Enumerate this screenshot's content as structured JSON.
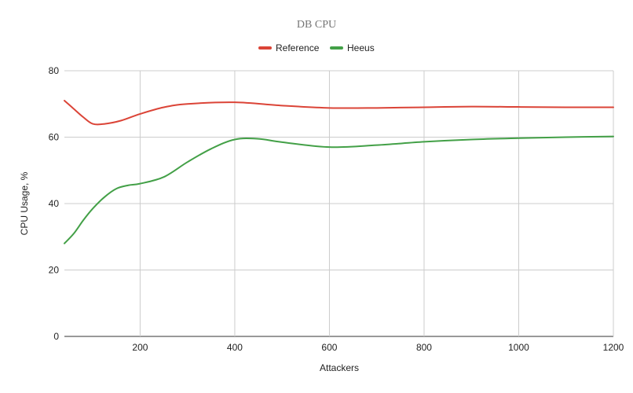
{
  "chart_data": {
    "type": "line",
    "title": "DB CPU",
    "xlabel": "Attackers",
    "ylabel": "CPU Usage, %",
    "xlim": [
      40,
      1200
    ],
    "ylim": [
      0,
      80
    ],
    "x_ticks": [
      200,
      400,
      600,
      800,
      1000,
      1200
    ],
    "y_ticks": [
      0,
      20,
      40,
      60,
      80
    ],
    "grid": true,
    "legend_position": "top-center",
    "series": [
      {
        "name": "Reference",
        "color": "#db4437",
        "points": [
          [
            40,
            71
          ],
          [
            60,
            68.5
          ],
          [
            80,
            66
          ],
          [
            100,
            64
          ],
          [
            125,
            64
          ],
          [
            160,
            65
          ],
          [
            200,
            67
          ],
          [
            250,
            69
          ],
          [
            300,
            70
          ],
          [
            400,
            70.5
          ],
          [
            500,
            69.5
          ],
          [
            600,
            68.8
          ],
          [
            700,
            68.8
          ],
          [
            800,
            69
          ],
          [
            900,
            69.2
          ],
          [
            1000,
            69.1
          ],
          [
            1100,
            69
          ],
          [
            1200,
            69
          ]
        ]
      },
      {
        "name": "Heeus",
        "color": "#43a047",
        "points": [
          [
            40,
            28
          ],
          [
            60,
            31
          ],
          [
            80,
            35
          ],
          [
            100,
            38.5
          ],
          [
            125,
            42
          ],
          [
            150,
            44.5
          ],
          [
            175,
            45.5
          ],
          [
            200,
            46
          ],
          [
            250,
            48
          ],
          [
            300,
            52.5
          ],
          [
            350,
            56.5
          ],
          [
            400,
            59.3
          ],
          [
            450,
            59.5
          ],
          [
            500,
            58.5
          ],
          [
            600,
            57
          ],
          [
            700,
            57.6
          ],
          [
            800,
            58.6
          ],
          [
            900,
            59.3
          ],
          [
            1000,
            59.7
          ],
          [
            1100,
            60
          ],
          [
            1200,
            60.2
          ]
        ]
      }
    ]
  }
}
